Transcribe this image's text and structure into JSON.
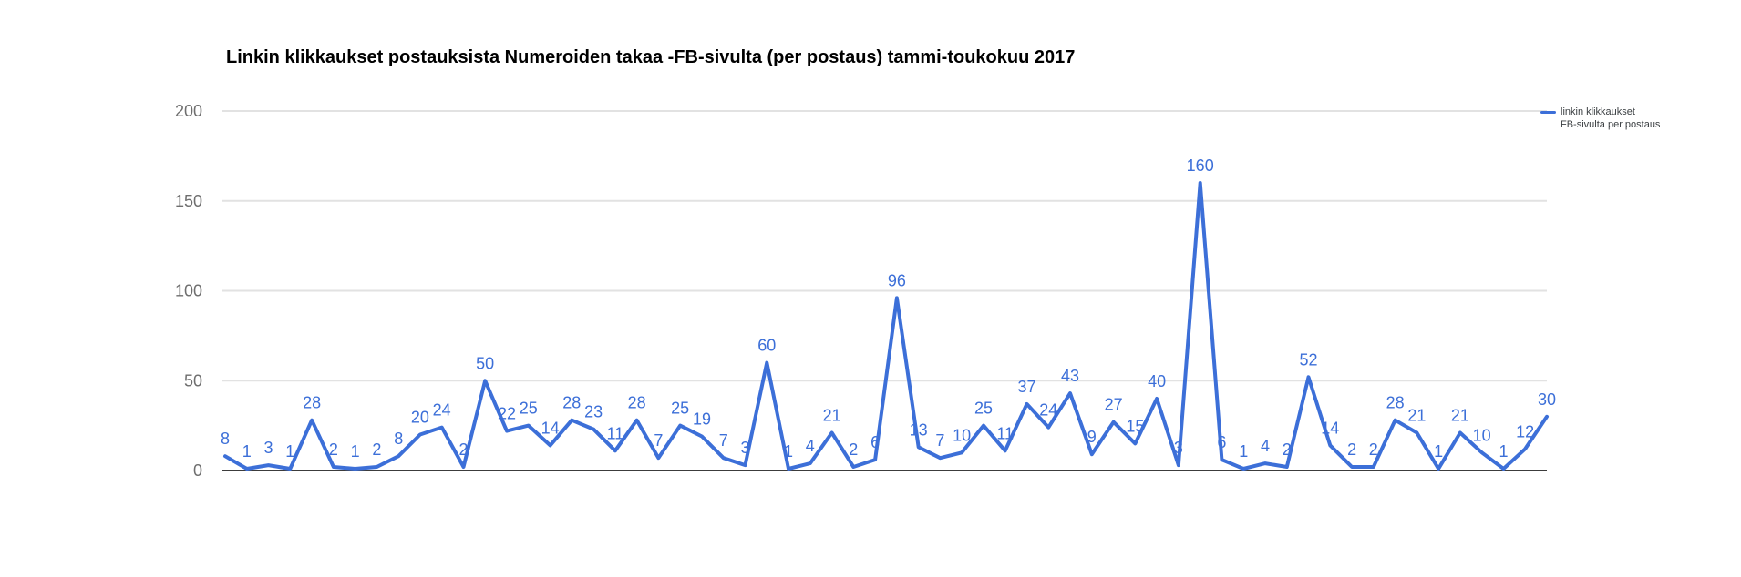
{
  "title": "Linkin klikkaukset postauksista Numeroiden takaa -FB-sivulta (per postaus) tammi-toukokuu 2017",
  "legend": {
    "line1": "linkin klikkaukset",
    "line2": "FB-sivulta per postaus"
  },
  "colors": {
    "series": "#3c6fd8",
    "grid": "#e2e2e2",
    "axis_baseline": "#3c3c3c",
    "tick_label": "#6e6e6e",
    "data_label": "#3c6fd8"
  },
  "chart_data": {
    "type": "line",
    "title": "Linkin klikkaukset postauksista Numeroiden takaa -FB-sivulta (per postaus) tammi-toukokuu 2017",
    "legend_position": "right",
    "grid": true,
    "x_axis": {
      "labels_visible": false
    },
    "y_axis": {
      "ticks": [
        0,
        50,
        100,
        150,
        200
      ],
      "range": [
        0,
        200
      ]
    },
    "series": [
      {
        "name": "linkin klikkaukset FB-sivulta per postaus",
        "color": "#3c6fd8",
        "values": [
          8,
          1,
          3,
          1,
          28,
          2,
          1,
          2,
          8,
          20,
          24,
          2,
          50,
          22,
          25,
          14,
          28,
          23,
          11,
          28,
          7,
          25,
          19,
          7,
          3,
          60,
          1,
          4,
          21,
          2,
          6,
          96,
          13,
          7,
          10,
          25,
          11,
          37,
          24,
          43,
          9,
          27,
          15,
          40,
          3,
          160,
          6,
          1,
          4,
          2,
          52,
          14,
          2,
          2,
          28,
          21,
          1,
          21,
          10,
          1,
          12,
          30
        ]
      }
    ],
    "data_labels": true
  }
}
